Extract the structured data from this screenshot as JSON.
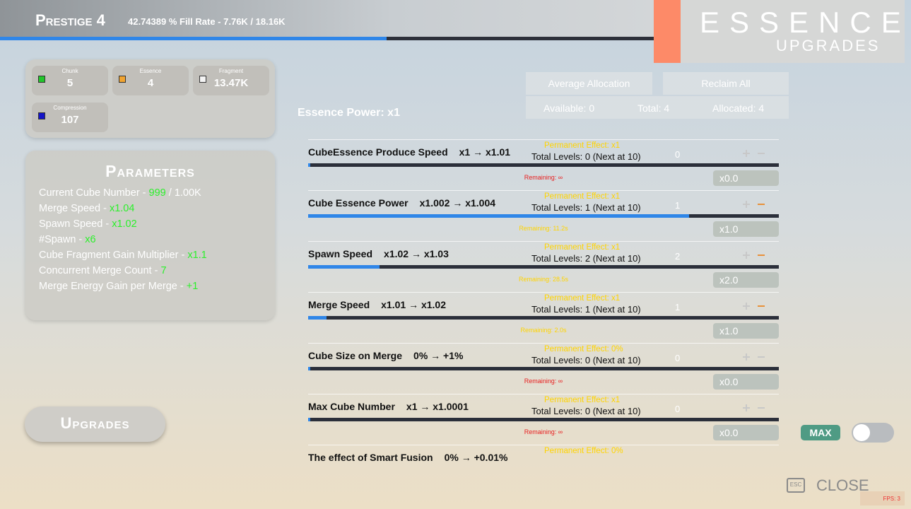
{
  "header": {
    "title": "Prestige 4",
    "fill_text": "42.74389 % Fill Rate - 7.76K / 18.16K"
  },
  "essence_panel": {
    "title": "Essence",
    "subtitle": "Upgrades"
  },
  "resources": [
    {
      "label": "Chunk",
      "value": "5"
    },
    {
      "label": "Essence",
      "value": "4"
    },
    {
      "label": "Fragment",
      "value": "13.47K"
    },
    {
      "label": "Compression",
      "value": "107"
    }
  ],
  "parameters": {
    "title": "Parameters",
    "items": [
      {
        "label": "Current Cube Number - ",
        "value": "999",
        "suffix": " / 1.00K"
      },
      {
        "label": "Merge Speed - ",
        "value": "x1.04"
      },
      {
        "label": "Spawn Speed - ",
        "value": "x1.02"
      },
      {
        "label": "#Spawn - ",
        "value": "x6"
      },
      {
        "label": "Cube Fragment Gain Multiplier - ",
        "value": "x1.1"
      },
      {
        "label": "Concurrent Merge Count - ",
        "value": "7"
      },
      {
        "label": "Merge Energy Gain per Merge - ",
        "value": "+1"
      }
    ]
  },
  "allocation": {
    "average_button": "Average Allocation",
    "reclaim_button": "Reclaim All",
    "available": "Available: 0",
    "total": "Total: 4",
    "allocated": "Allocated: 4"
  },
  "essence_power": "Essence Power: x1",
  "upgrades": [
    {
      "name": "CubeEssence Produce Speed",
      "effect": "x1 → x1.01",
      "permanent": "Permanent Effect: x1",
      "total": "Total Levels: 0 (Next at 10)",
      "level": "0",
      "remaining": "Remaining: ∞",
      "multiplier": "x0.0"
    },
    {
      "name": "Cube Essence Power",
      "effect": "x1.002 → x1.004",
      "permanent": "Permanent Effect: x1",
      "total": "Total Levels: 1 (Next at 10)",
      "level": "1",
      "remaining": "Remaining: 11.2s",
      "multiplier": "x1.0"
    },
    {
      "name": "Spawn Speed",
      "effect": "x1.02 → x1.03",
      "permanent": "Permanent Effect: x1",
      "total": "Total Levels: 2 (Next at 10)",
      "level": "2",
      "remaining": "Remaining: 28.5s",
      "multiplier": "x2.0"
    },
    {
      "name": "Merge Speed",
      "effect": "x1.01 → x1.02",
      "permanent": "Permanent Effect: x1",
      "total": "Total Levels: 1 (Next at 10)",
      "level": "1",
      "remaining": "Remaining: 2.0s",
      "multiplier": "x1.0"
    },
    {
      "name": "Cube Size on Merge",
      "effect": "0% → +1%",
      "permanent": "Permanent Effect: 0%",
      "total": "Total Levels: 0 (Next at 10)",
      "level": "0",
      "remaining": "Remaining: ∞",
      "multiplier": "x0.0"
    },
    {
      "name": "Max Cube Number",
      "effect": "x1 → x1.0001",
      "permanent": "Permanent Effect: x1",
      "total": "Total Levels: 0 (Next at 10)",
      "level": "0",
      "remaining": "Remaining: ∞",
      "multiplier": "x0.0"
    },
    {
      "name": "The effect of Smart Fusion",
      "effect": "0% → +0.01%",
      "permanent": "Permanent Effect: 0%"
    }
  ],
  "footer": {
    "upgrades_button": "Upgrades",
    "max_label": "MAX",
    "esc_key": "ESC",
    "close": "CLOSE",
    "fps": "FPS: 3"
  }
}
